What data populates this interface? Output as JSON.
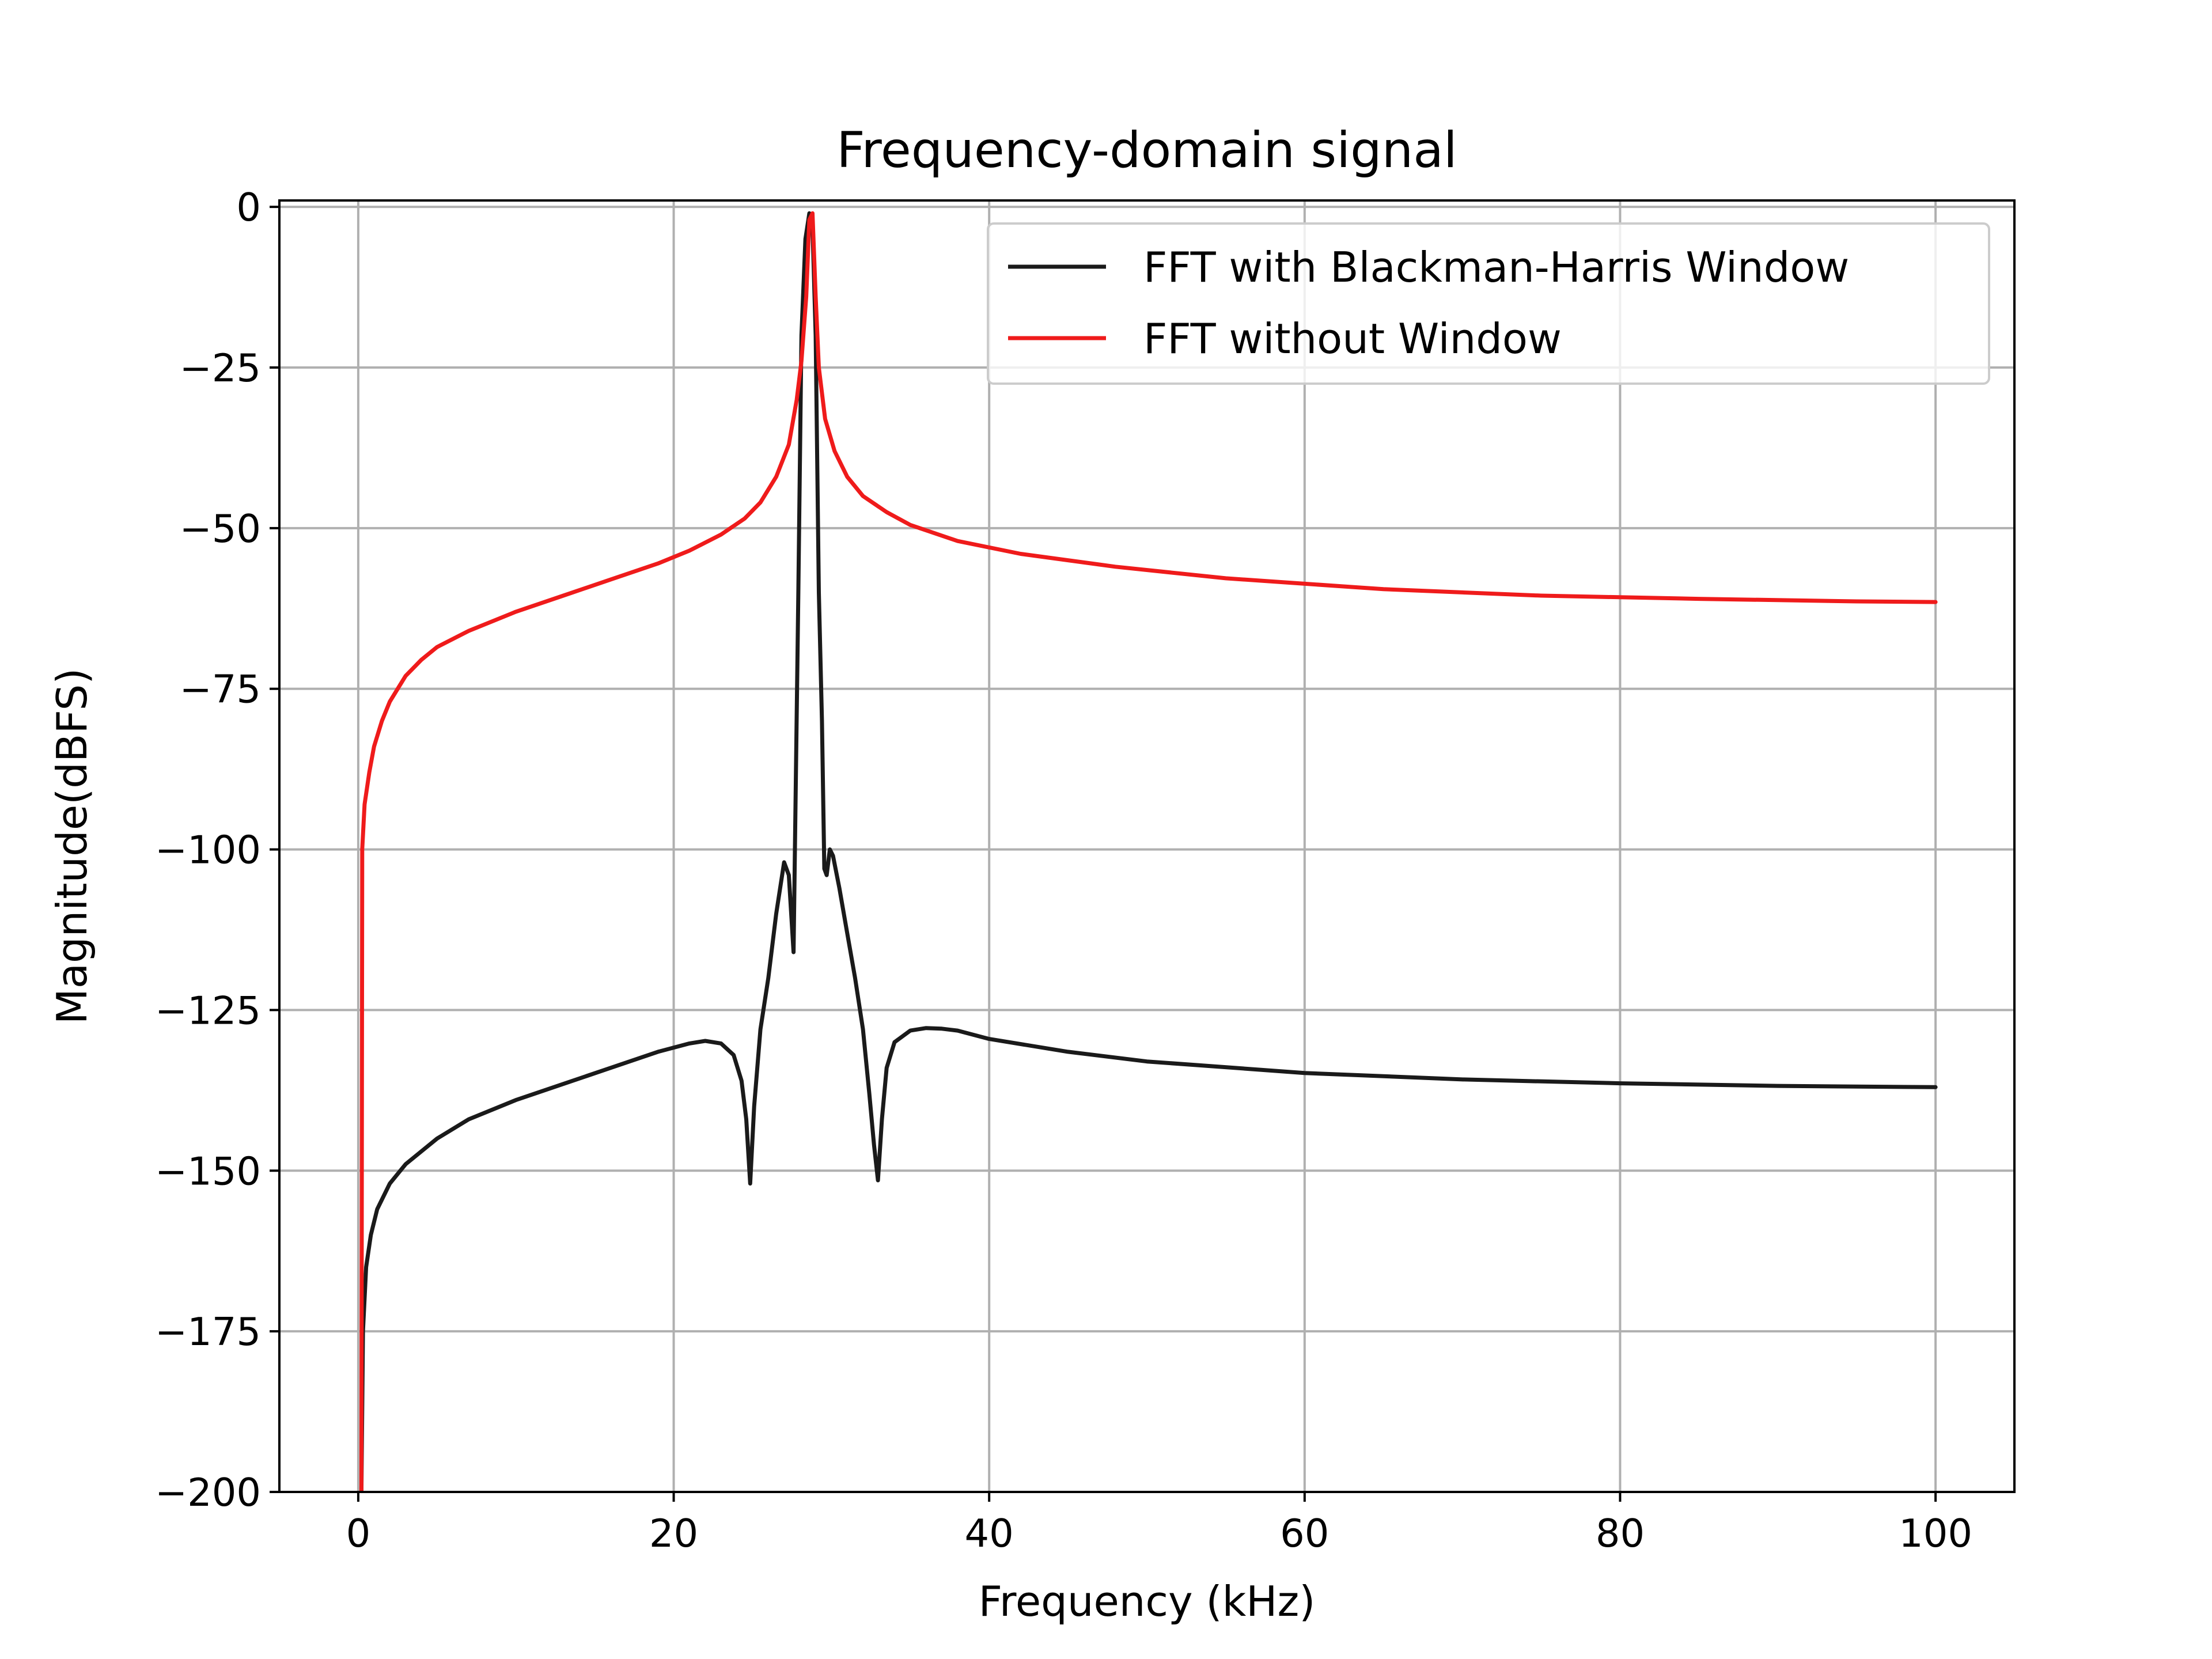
{
  "chart_data": {
    "type": "line",
    "title": "Frequency-domain signal",
    "xlabel": "Frequency (kHz)",
    "ylabel": "Magnitude(dBFS)",
    "xlim": [
      -5,
      105
    ],
    "ylim": [
      -200,
      1
    ],
    "xticks": [
      0,
      20,
      40,
      60,
      80,
      100
    ],
    "yticks": [
      0,
      -25,
      -50,
      -75,
      -100,
      -125,
      -150,
      -175,
      -200
    ],
    "xtick_labels": [
      "0",
      "20",
      "40",
      "60",
      "80",
      "100"
    ],
    "ytick_labels": [
      "0",
      "−25",
      "−50",
      "−75",
      "−100",
      "−125",
      "−150",
      "−175",
      "−200"
    ],
    "grid": true,
    "legend_position": "top-right",
    "series": [
      {
        "name": "FFT with Blackman-Harris Window",
        "color": "#1a1a1a",
        "x": [
          0.2,
          0.3,
          0.5,
          0.8,
          1.2,
          2,
          3,
          4,
          5,
          7,
          10,
          13,
          16,
          19,
          21,
          22,
          23,
          23.8,
          24.3,
          24.6,
          24.85,
          25.1,
          25.5,
          26,
          26.5,
          27,
          27.3,
          27.6,
          27.9,
          28.1,
          28.35,
          28.6,
          28.8,
          29.0,
          29.2,
          29.4,
          29.55,
          29.7,
          29.9,
          30.1,
          30.5,
          31,
          31.5,
          32,
          32.4,
          32.7,
          32.95,
          33.2,
          33.5,
          34,
          35,
          36,
          37,
          38,
          40,
          45,
          50,
          60,
          70,
          80,
          90,
          100
        ],
        "y": [
          -200,
          -175,
          -165,
          -160,
          -156,
          -152,
          -149,
          -147,
          -145,
          -142,
          -139,
          -136.5,
          -134,
          -131.5,
          -130.2,
          -129.8,
          -130.2,
          -132,
          -136,
          -142,
          -152,
          -140,
          -128,
          -120,
          -110,
          -102,
          -104,
          -116,
          -60,
          -20,
          -5,
          -1,
          -3,
          -20,
          -60,
          -80,
          -103,
          -104,
          -100,
          -101,
          -106,
          -113,
          -120,
          -128,
          -138,
          -146,
          -151.5,
          -142,
          -134,
          -130,
          -128.2,
          -127.8,
          -127.9,
          -128.2,
          -129.5,
          -131.5,
          -133,
          -134.8,
          -135.8,
          -136.4,
          -136.8,
          -137
        ]
      },
      {
        "name": "FFT without Window",
        "color": "#ef1b1b",
        "x": [
          0.2,
          0.25,
          0.4,
          0.7,
          1,
          1.5,
          2,
          3,
          4,
          5,
          7,
          10,
          13,
          16,
          19,
          21,
          23,
          24.5,
          25.5,
          26.5,
          27.3,
          27.8,
          28.1,
          28.4,
          28.6,
          28.8,
          29.0,
          29.2,
          29.6,
          30.2,
          31,
          32,
          33.5,
          35,
          38,
          42,
          48,
          55,
          65,
          75,
          85,
          95,
          100
        ],
        "y": [
          -200,
          -100,
          -93,
          -88,
          -84,
          -80,
          -77,
          -73,
          -70.5,
          -68.5,
          -66,
          -63,
          -60.5,
          -58,
          -55.5,
          -53.5,
          -51,
          -48.5,
          -46,
          -42,
          -37,
          -30,
          -24,
          -14,
          -2,
          -1,
          -14,
          -25,
          -33,
          -38,
          -42,
          -45,
          -47.5,
          -49.5,
          -52,
          -54,
          -56,
          -57.8,
          -59.5,
          -60.5,
          -61,
          -61.4,
          -61.5
        ]
      }
    ]
  }
}
